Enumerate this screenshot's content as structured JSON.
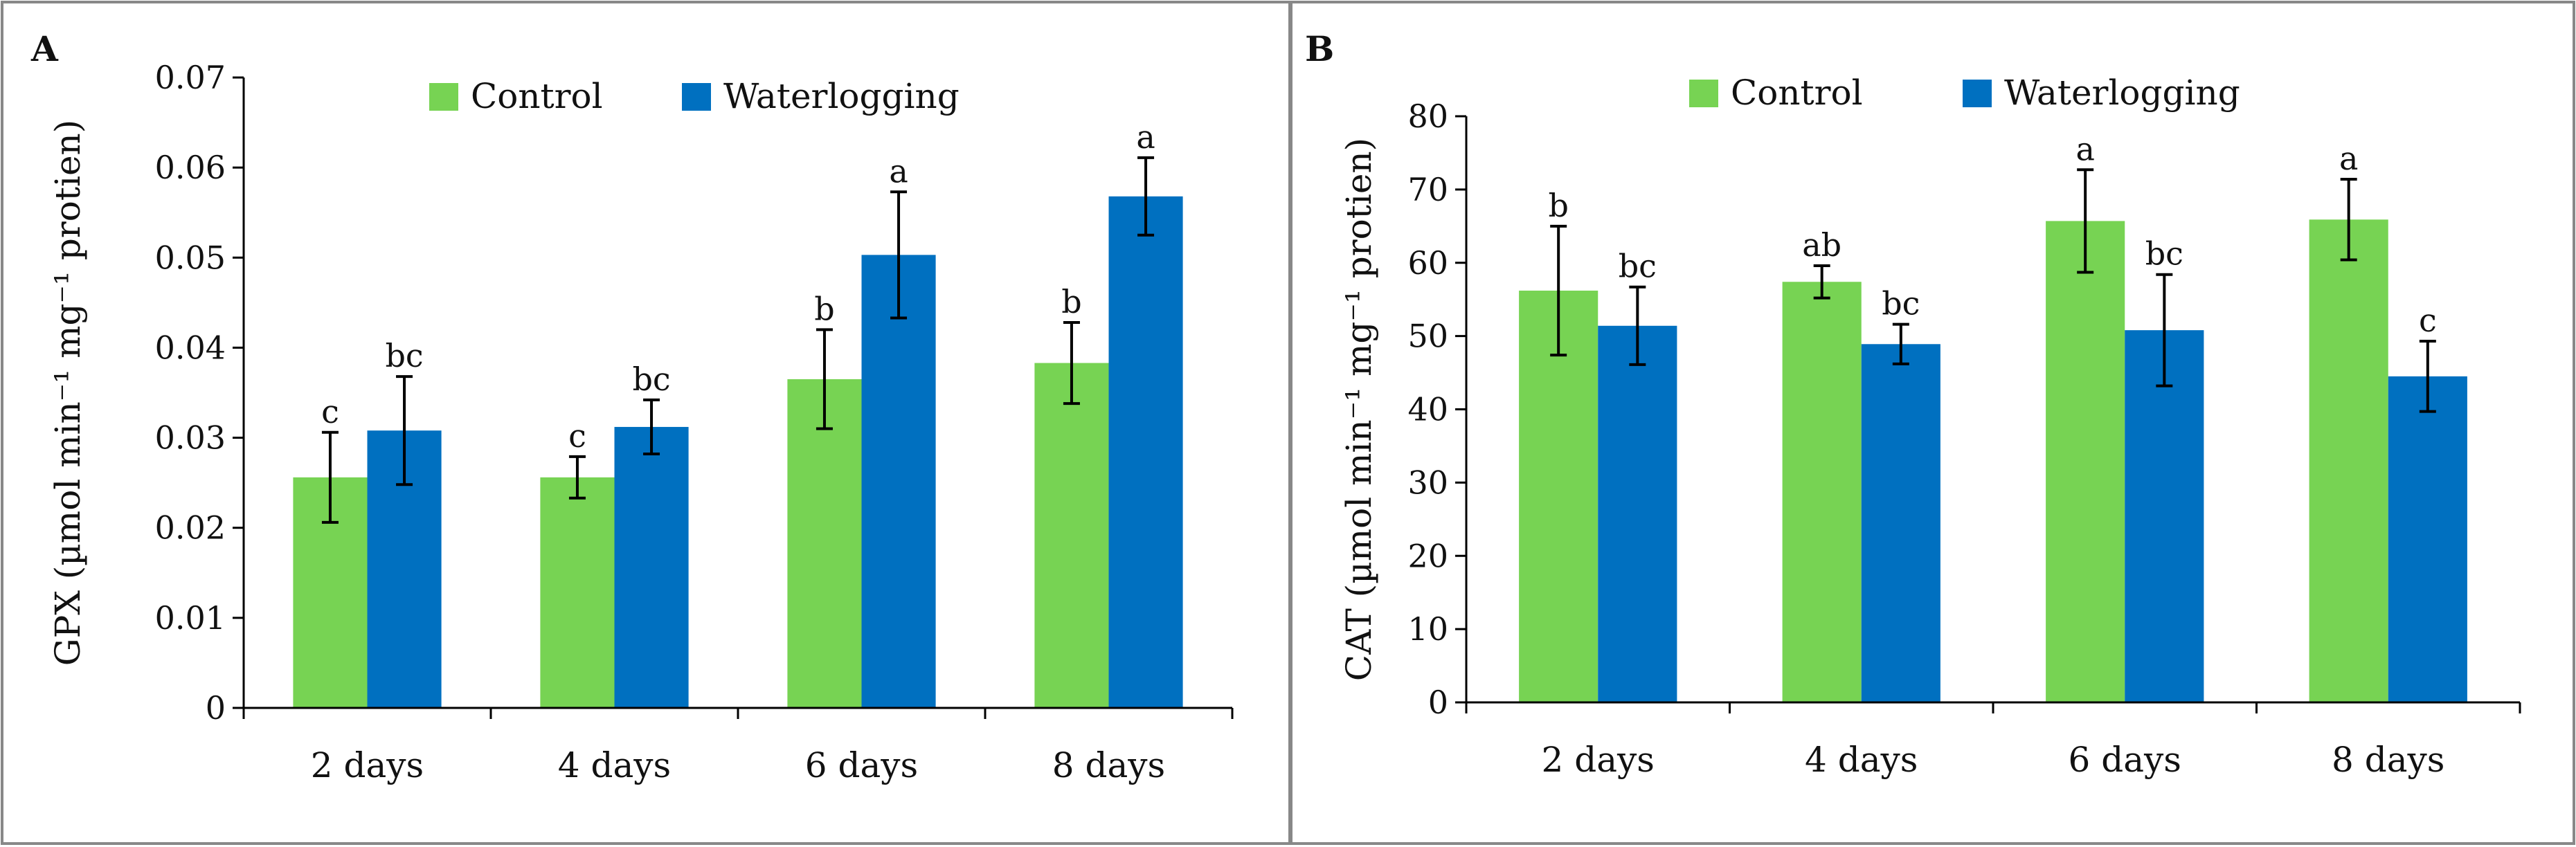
{
  "colors": {
    "control": "#77D353",
    "waterlogging": "#0070C0",
    "axis": "#000000",
    "frame": "#888888"
  },
  "chart_data": [
    {
      "panel_label": "A",
      "type": "bar",
      "title": "",
      "xlabel": "",
      "ylabel": "GPX (µmol min⁻¹ mg⁻¹ protien)",
      "ylim": [
        0,
        0.07
      ],
      "yticks": [
        "0",
        "0.01",
        "0.02",
        "0.03",
        "0.04",
        "0.05",
        "0.06",
        "0.07"
      ],
      "categories": [
        "2 days",
        "4 days",
        "6 days",
        "8 days"
      ],
      "legend": [
        "Control",
        "Waterlogging"
      ],
      "legend_position": "top-center",
      "series": [
        {
          "name": "Control",
          "values": [
            0.0256,
            0.0256,
            0.0365,
            0.0383
          ],
          "errors": [
            0.005,
            0.0023,
            0.0055,
            0.0045
          ],
          "labels": [
            "c",
            "c",
            "b",
            "b"
          ]
        },
        {
          "name": "Waterlogging",
          "values": [
            0.0308,
            0.0312,
            0.0503,
            0.0568
          ],
          "errors": [
            0.006,
            0.003,
            0.007,
            0.0043
          ],
          "labels": [
            "bc",
            "bc",
            "a",
            "a"
          ]
        }
      ]
    },
    {
      "panel_label": "B",
      "type": "bar",
      "title": "",
      "xlabel": "",
      "ylabel": "CAT (µmol min⁻¹ mg⁻¹ protien)",
      "ylim": [
        0,
        80
      ],
      "yticks": [
        "0",
        "10",
        "20",
        "30",
        "40",
        "50",
        "60",
        "70",
        "80"
      ],
      "categories": [
        "2 days",
        "4 days",
        "6 days",
        "8 days"
      ],
      "legend": [
        "Control",
        "Waterlogging"
      ],
      "legend_position": "top-center",
      "series": [
        {
          "name": "Control",
          "values": [
            56.2,
            57.4,
            65.7,
            65.9
          ],
          "errors": [
            8.8,
            2.2,
            7.0,
            5.5
          ],
          "labels": [
            "b",
            "ab",
            "a",
            "a"
          ]
        },
        {
          "name": "Waterlogging",
          "values": [
            51.4,
            48.9,
            50.8,
            44.5
          ],
          "errors": [
            5.3,
            2.7,
            7.6,
            4.8
          ],
          "labels": [
            "bc",
            "bc",
            "bc",
            "c"
          ]
        }
      ]
    }
  ]
}
